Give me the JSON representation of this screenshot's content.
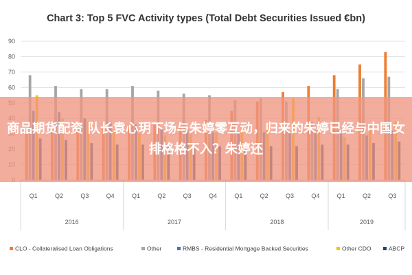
{
  "banner": {
    "text": "商品期货配资 队长袁心玥下场与朱婷零互动，归来的朱婷已经与中国女排格格不入？朱婷还"
  },
  "chart_data": {
    "type": "bar",
    "title": "Chart 3: Top 5 FVC Activity types (Total Debt Securities Issued €bn)",
    "xlabel": "",
    "ylabel": "",
    "ylim": [
      0,
      90
    ],
    "yticks": [
      0,
      10,
      20,
      30,
      40,
      50,
      60,
      70,
      80,
      90
    ],
    "grid": true,
    "legend_position": "bottom",
    "categories": [
      "Q1",
      "Q2",
      "Q3",
      "Q4",
      "Q1",
      "Q2",
      "Q3",
      "Q4",
      "Q1",
      "Q2",
      "Q3",
      "Q4",
      "Q1",
      "Q2",
      "Q3"
    ],
    "years": [
      {
        "label": "2016",
        "count": 4
      },
      {
        "label": "2017",
        "count": 4
      },
      {
        "label": "2018",
        "count": 4
      },
      {
        "label": "2019",
        "count": 3
      }
    ],
    "series": [
      {
        "name": "CLO - Collateralised Loan Obligations",
        "color": "#ED7D31",
        "values": [
          30,
          32,
          33,
          34,
          35,
          36,
          37,
          39,
          45,
          51,
          57,
          61,
          68,
          75,
          83
        ]
      },
      {
        "name": "Other",
        "color": "#A5A5A5",
        "values": [
          68,
          61,
          59,
          59,
          61,
          58,
          56,
          55,
          52,
          53,
          51,
          38,
          59,
          66,
          67
        ]
      },
      {
        "name": "RMBS - Residential Mortgage Backed Securities",
        "color": "#4472C4",
        "values": [
          45,
          44,
          40,
          38,
          36,
          33,
          33,
          31,
          30,
          31,
          31,
          32,
          30,
          29,
          32
        ]
      },
      {
        "name": "Other CDO",
        "color": "#FFC000",
        "values": [
          55,
          40,
          38,
          32,
          30,
          29,
          30,
          31,
          34,
          36,
          53,
          41,
          28,
          36,
          38
        ]
      },
      {
        "name": "ABCP",
        "color": "#264478",
        "values": [
          27,
          26,
          24,
          23,
          23,
          22,
          22,
          22,
          21,
          22,
          22,
          23,
          23,
          24,
          25
        ]
      }
    ]
  }
}
